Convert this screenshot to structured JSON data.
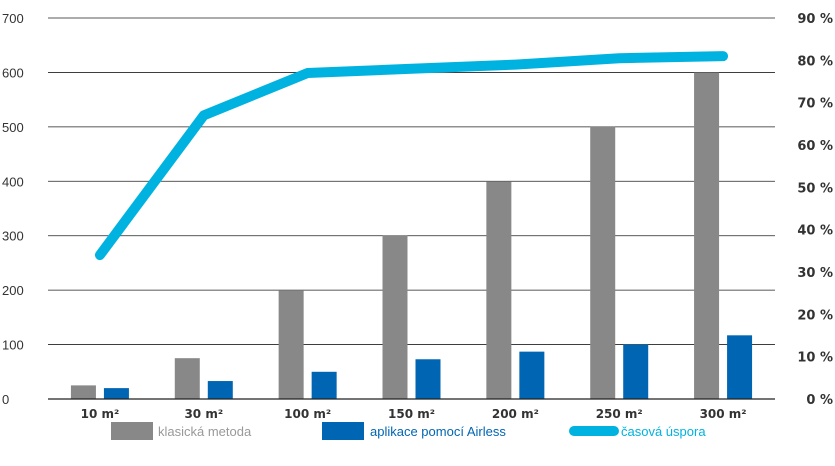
{
  "chart_data": {
    "type": "bar",
    "categories": [
      "10 m²",
      "30 m²",
      "100 m²",
      "150 m²",
      "200 m²",
      "250 m²",
      "300 m²"
    ],
    "series": [
      {
        "name": "klasická metoda",
        "kind": "bar",
        "axis": "left",
        "color": "#888888",
        "values": [
          25,
          75,
          200,
          300,
          400,
          500,
          600
        ]
      },
      {
        "name": "aplikace pomocí Airless",
        "kind": "bar",
        "axis": "left",
        "color": "#0066b3",
        "values": [
          20,
          33,
          50,
          73,
          87,
          100,
          117
        ]
      },
      {
        "name": "časová úspora",
        "kind": "line",
        "axis": "right",
        "color": "#00b2df",
        "values": [
          34,
          67,
          77,
          78,
          79,
          80.5,
          81
        ]
      }
    ],
    "y_left": {
      "ylim": [
        0,
        700
      ],
      "ticks": [
        0,
        100,
        200,
        300,
        400,
        500,
        600,
        700
      ]
    },
    "y_right": {
      "ylim": [
        0,
        90
      ],
      "ticks": [
        "0 %",
        "10 %",
        "20 %",
        "30 %",
        "40 %",
        "50 %",
        "60 %",
        "70 %",
        "80 %",
        "90 %"
      ]
    },
    "grid": true,
    "legend": "bottom",
    "colors": {
      "legend_text_gray": "#999999",
      "legend_text_blue": "#0066b3",
      "legend_text_cyan": "#00b2df"
    }
  }
}
